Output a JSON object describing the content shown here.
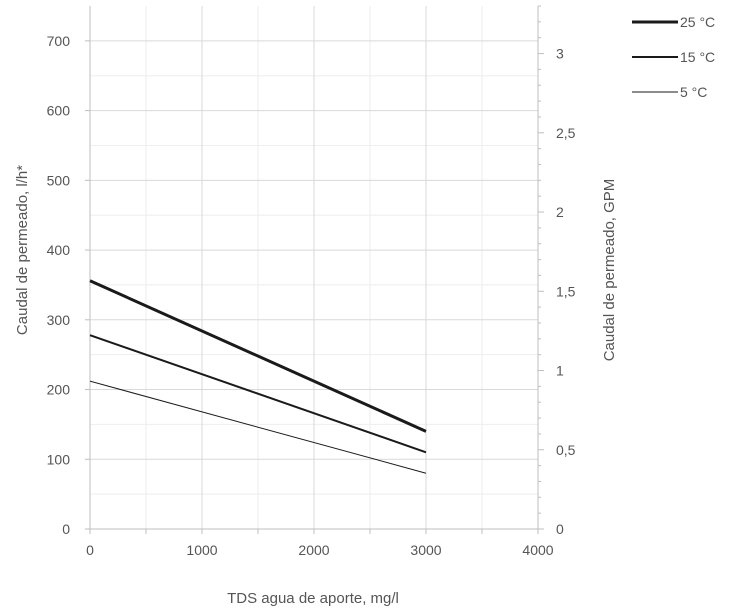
{
  "chart_data": {
    "type": "line",
    "xlabel": "TDS agua de aporte, mg/l",
    "ylabel": "Caudal de permeado, l/h*",
    "y2label": "Caudal de permeado, GPM",
    "xlim": [
      0,
      4000
    ],
    "ylim": [
      0,
      750
    ],
    "y2lim": [
      0,
      3.3
    ],
    "xticks": [
      0,
      1000,
      2000,
      3000,
      4000
    ],
    "xtick_labels": [
      "0",
      "1000",
      "2000",
      "3000",
      "4000"
    ],
    "yticks": [
      0,
      100,
      200,
      300,
      400,
      500,
      600,
      700
    ],
    "ytick_labels": [
      "0",
      "100",
      "200",
      "300",
      "400",
      "500",
      "600",
      "700"
    ],
    "y2ticks": [
      0,
      0.5,
      1,
      1.5,
      2,
      2.5,
      3
    ],
    "y2tick_labels": [
      "0",
      "0,5",
      "1",
      "1,5",
      "2",
      "2,5",
      "3"
    ],
    "grid": true,
    "legend": "top-right",
    "series": [
      {
        "name": "25 °C",
        "x": [
          0,
          3000
        ],
        "values": [
          356,
          140
        ],
        "color": "#1a1a1a",
        "width": 3
      },
      {
        "name": "15 °C",
        "x": [
          0,
          3000
        ],
        "values": [
          278,
          110
        ],
        "color": "#1a1a1a",
        "width": 2
      },
      {
        "name": "5 °C",
        "x": [
          0,
          3000
        ],
        "values": [
          212,
          80
        ],
        "color": "#1a1a1a",
        "width": 1
      }
    ]
  }
}
